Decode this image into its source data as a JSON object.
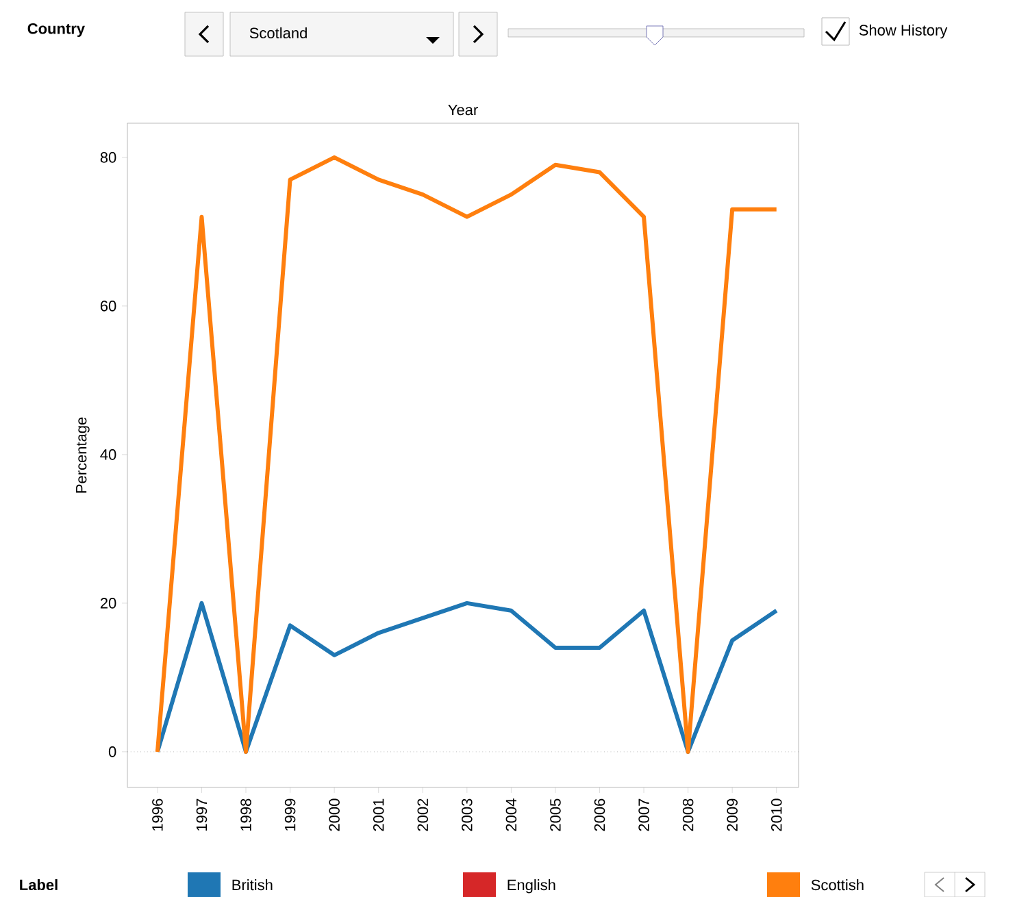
{
  "chart_data": {
    "type": "line",
    "title": "Year",
    "ylabel": "Percentage",
    "legend_title": "Label",
    "annotations": [
      "Country",
      "Scotland",
      "Show History"
    ],
    "categories": [
      "1996",
      "1997",
      "1998",
      "1999",
      "2000",
      "2001",
      "2002",
      "2003",
      "2004",
      "2005",
      "2006",
      "2007",
      "2008",
      "2009",
      "2010"
    ],
    "series": [
      {
        "name": "British",
        "color": "#1f77b4",
        "values": [
          0,
          20,
          0,
          17,
          13,
          16,
          18,
          20,
          19,
          14,
          14,
          19,
          0,
          15,
          19
        ]
      },
      {
        "name": "English",
        "color": "#d62728",
        "values": [
          null,
          null,
          null,
          null,
          null,
          null,
          null,
          null,
          null,
          null,
          null,
          null,
          null,
          null,
          null
        ]
      },
      {
        "name": "Scottish",
        "color": "#ff7f0e",
        "values": [
          0,
          72,
          0,
          77,
          80,
          77,
          75,
          72,
          75,
          79,
          78,
          72,
          0,
          73,
          73
        ]
      }
    ],
    "ylim": [
      -4.8,
      84.6
    ],
    "yticks": [
      0,
      20,
      40,
      60,
      80
    ],
    "ref_lines": [
      {
        "axis": "y",
        "value": 0,
        "line_style": "dotted",
        "color": "#999999"
      }
    ],
    "grid": false,
    "legend": "bottom",
    "marker": "none",
    "line_style": "solid"
  }
}
